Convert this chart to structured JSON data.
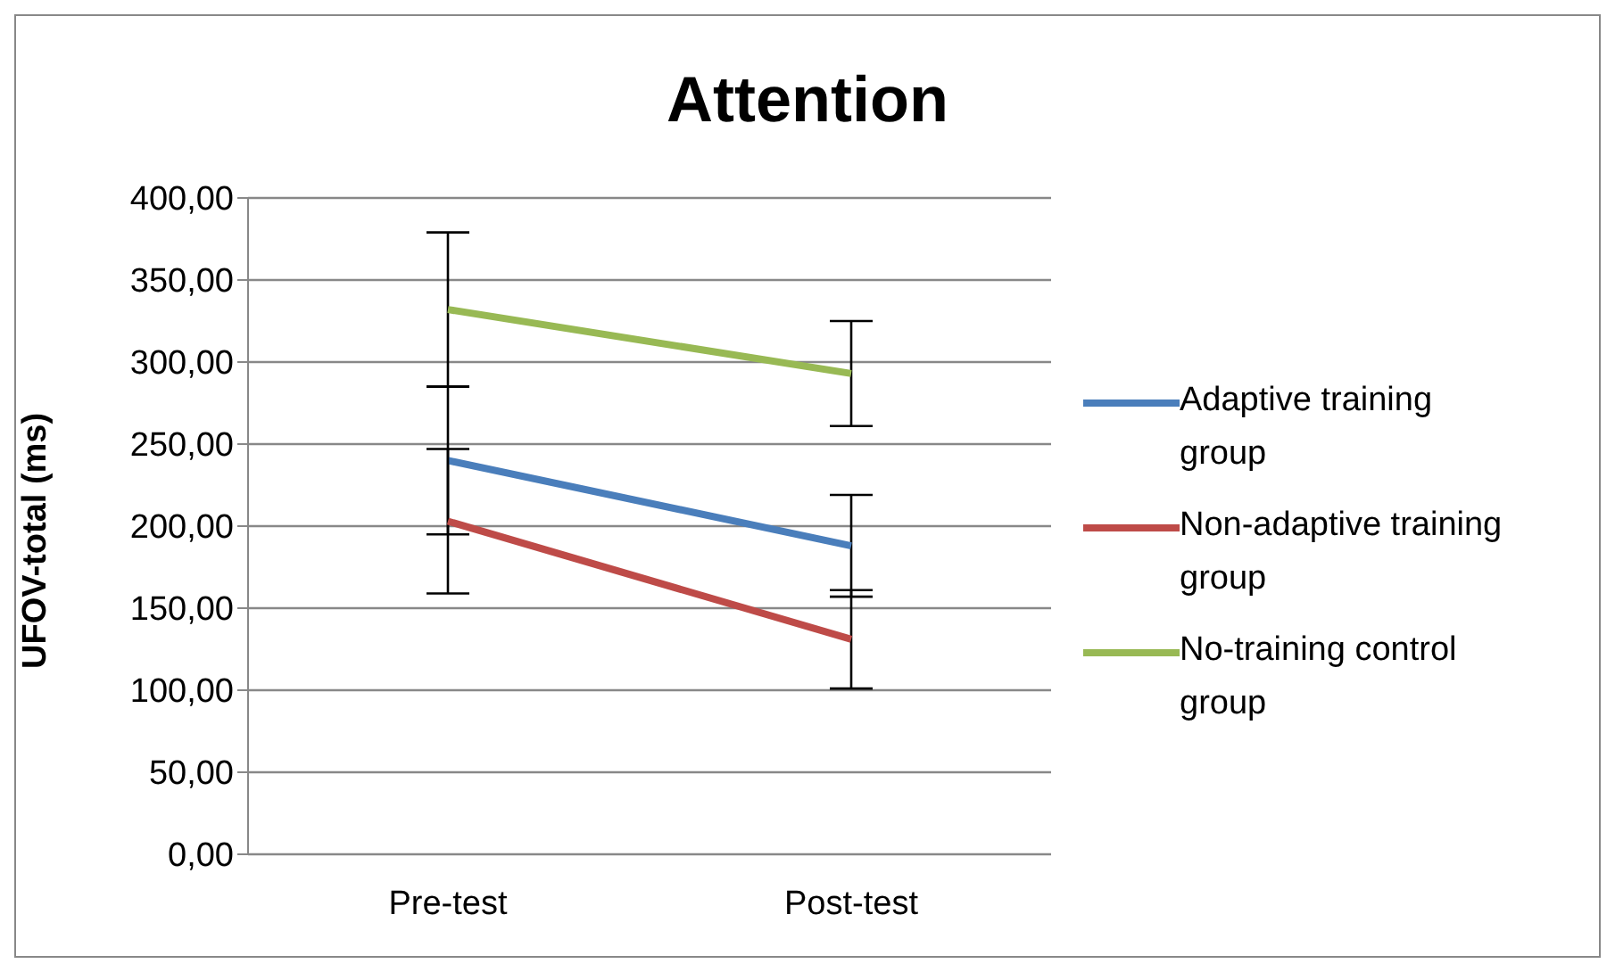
{
  "chart_data": {
    "type": "line",
    "title": "Attention",
    "ylabel": "UFOV-total (ms)",
    "categories": [
      "Pre-test",
      "Post-test"
    ],
    "series": [
      {
        "name": "Adaptive training group",
        "color": "#4a7ebb",
        "values": [
          240,
          188
        ],
        "errors": [
          45,
          31
        ]
      },
      {
        "name": "Non-adaptive training group",
        "color": "#be4b48",
        "values": [
          203,
          131
        ],
        "errors": [
          44,
          30
        ]
      },
      {
        "name": "No-training control group",
        "color": "#98b954",
        "values": [
          332,
          293
        ],
        "errors": [
          47,
          32
        ]
      }
    ],
    "ylim": [
      0,
      400
    ],
    "yticks": [
      {
        "value": 0,
        "label": "0,00"
      },
      {
        "value": 50,
        "label": "50,00"
      },
      {
        "value": 100,
        "label": "100,00"
      },
      {
        "value": 150,
        "label": "150,00"
      },
      {
        "value": 200,
        "label": "200,00"
      },
      {
        "value": 250,
        "label": "250,00"
      },
      {
        "value": 300,
        "label": "300,00"
      },
      {
        "value": 350,
        "label": "350,00"
      },
      {
        "value": 400,
        "label": "400,00"
      }
    ],
    "grid": "y",
    "legend": "right",
    "marker": "none",
    "line_style": "solid"
  }
}
